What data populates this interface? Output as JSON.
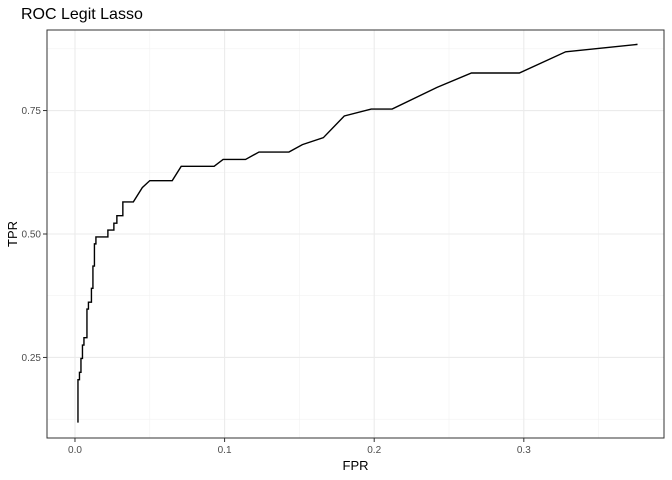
{
  "chart_data": {
    "type": "line",
    "title": "ROC Legit Lasso",
    "xlabel": "FPR",
    "ylabel": "TPR",
    "xlim": [
      -0.0187,
      0.3937
    ],
    "ylim": [
      0.0869,
      0.9131
    ],
    "grid": true,
    "x_ticks": [
      0.0,
      0.1,
      0.2,
      0.3
    ],
    "x_tick_labels": [
      "0.0",
      "0.1",
      "0.2",
      "0.3"
    ],
    "x_minor_ticks": [
      0.05,
      0.15,
      0.25,
      0.35
    ],
    "y_ticks": [
      0.25,
      0.5,
      0.75
    ],
    "y_tick_labels": [
      "0.25",
      "0.50",
      "0.75"
    ],
    "y_minor_ticks": [
      0.125,
      0.375,
      0.625,
      0.875
    ],
    "series": [
      {
        "color": "#000000",
        "x": [
          0.002,
          0.002,
          0.003,
          0.003,
          0.004,
          0.004,
          0.005,
          0.005,
          0.006,
          0.006,
          0.008,
          0.008,
          0.009,
          0.009,
          0.011,
          0.011,
          0.012,
          0.012,
          0.013,
          0.013,
          0.014,
          0.014,
          0.022,
          0.022,
          0.026,
          0.026,
          0.028,
          0.028,
          0.032,
          0.032,
          0.039,
          0.045,
          0.045,
          0.05,
          0.05,
          0.065,
          0.071,
          0.093,
          0.099,
          0.114,
          0.123,
          0.143,
          0.152,
          0.166,
          0.18,
          0.198,
          0.212,
          0.242,
          0.265,
          0.297,
          0.328,
          0.376
        ],
        "y": [
          0.118,
          0.205,
          0.205,
          0.22,
          0.22,
          0.248,
          0.248,
          0.275,
          0.275,
          0.29,
          0.29,
          0.348,
          0.348,
          0.362,
          0.362,
          0.39,
          0.39,
          0.435,
          0.435,
          0.48,
          0.48,
          0.494,
          0.494,
          0.508,
          0.508,
          0.522,
          0.522,
          0.537,
          0.537,
          0.565,
          0.565,
          0.594,
          0.594,
          0.608,
          0.608,
          0.608,
          0.637,
          0.637,
          0.651,
          0.651,
          0.666,
          0.666,
          0.681,
          0.695,
          0.739,
          0.753,
          0.753,
          0.797,
          0.826,
          0.826,
          0.869,
          0.884
        ]
      }
    ]
  }
}
